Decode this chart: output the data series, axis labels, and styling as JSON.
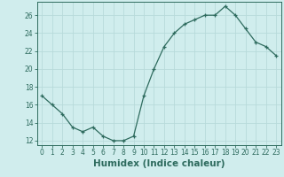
{
  "x": [
    0,
    1,
    2,
    3,
    4,
    5,
    6,
    7,
    8,
    9,
    10,
    11,
    12,
    13,
    14,
    15,
    16,
    17,
    18,
    19,
    20,
    21,
    22,
    23
  ],
  "y": [
    17.0,
    16.0,
    15.0,
    13.5,
    13.0,
    13.5,
    12.5,
    12.0,
    12.0,
    12.5,
    17.0,
    20.0,
    22.5,
    24.0,
    25.0,
    25.5,
    26.0,
    26.0,
    27.0,
    26.0,
    24.5,
    23.0,
    22.5,
    21.5
  ],
  "line_color": "#2e6b5e",
  "marker": "+",
  "marker_size": 3,
  "bg_color": "#d0eded",
  "grid_color": "#b8dada",
  "xlabel": "Humidex (Indice chaleur)",
  "xlim": [
    -0.5,
    23.5
  ],
  "ylim": [
    11.5,
    27.5
  ],
  "yticks": [
    12,
    14,
    16,
    18,
    20,
    22,
    24,
    26
  ],
  "xticks": [
    0,
    1,
    2,
    3,
    4,
    5,
    6,
    7,
    8,
    9,
    10,
    11,
    12,
    13,
    14,
    15,
    16,
    17,
    18,
    19,
    20,
    21,
    22,
    23
  ],
  "tick_fontsize": 5.5,
  "label_fontsize": 7.5
}
